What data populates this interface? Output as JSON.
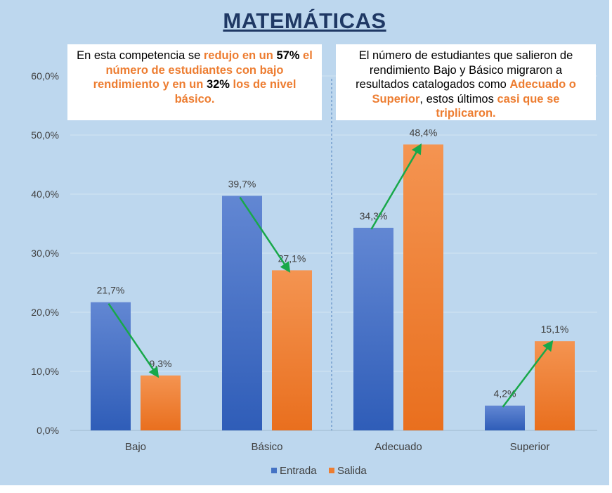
{
  "title": "MATEMÁTICAS",
  "notes": {
    "left": {
      "t1": "En esta competencia se ",
      "t2": "redujo en un ",
      "t3": "57%",
      "t4": " el número de estudiantes con bajo rendimiento y en un ",
      "t5": "32%",
      "t6": " los de nivel básico."
    },
    "right": {
      "t1": "El número de estudiantes que salieron de rendimiento Bajo y Básico migraron a resultados catalogados como ",
      "t2": "Adecuado o Superior",
      "t3": ", estos últimos ",
      "t4": "casi que se triplicaron."
    }
  },
  "colors": {
    "background": "#bdd7ee",
    "entrada": "#4472c4",
    "salida": "#ed7d31",
    "arrow": "#18a84a",
    "title": "#1f3864"
  },
  "chart_data": {
    "type": "bar",
    "categories": [
      "Bajo",
      "Básico",
      "Adecuado",
      "Superior"
    ],
    "series": [
      {
        "name": "Entrada",
        "values": [
          21.7,
          39.7,
          34.3,
          4.2
        ],
        "labels": [
          "21,7%",
          "39,7%",
          "34,3%",
          "4,2%"
        ]
      },
      {
        "name": "Salida",
        "values": [
          9.3,
          27.1,
          48.4,
          15.1
        ],
        "labels": [
          "9,3%",
          "27,1%",
          "48,4%",
          "15,1%"
        ]
      }
    ],
    "ylim": [
      0,
      60
    ],
    "yticks": [
      0,
      10,
      20,
      30,
      40,
      50,
      60
    ],
    "ytick_labels": [
      "0,0%",
      "10,0%",
      "20,0%",
      "30,0%",
      "40,0%",
      "50,0%",
      "60,0%"
    ],
    "grid": true,
    "legend": "bottom-center",
    "annotations": "green arrows from each Entrada bar to the matching Salida bar; dashed divider between Básico and Adecuado"
  }
}
